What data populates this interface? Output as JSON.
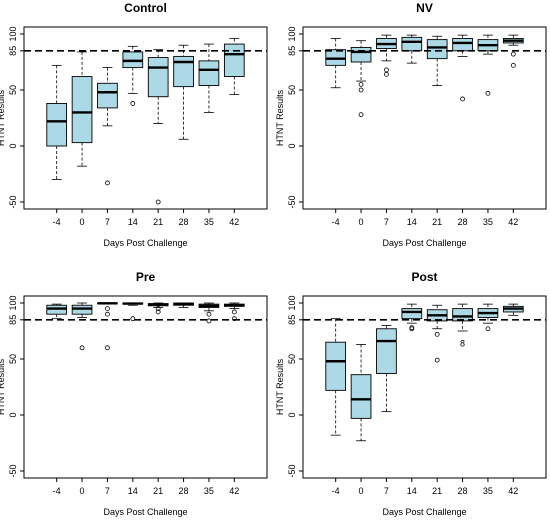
{
  "colors": {
    "box_fill": "#add8e6",
    "stroke": "#000000",
    "background": "#ffffff"
  },
  "chart_data": [
    {
      "type": "box",
      "title": "Control",
      "xlabel": "Days Post Challenge",
      "ylabel": "HTNT Results",
      "ylim": [
        -50,
        100
      ],
      "yticks": [
        "-50",
        "0",
        "50",
        "85",
        "100"
      ],
      "reference_line": {
        "value": 85,
        "style": "dashed"
      },
      "categories": [
        "-4",
        "0",
        "7",
        "14",
        "21",
        "28",
        "35",
        "42"
      ],
      "boxes": [
        {
          "whisker_low": -30,
          "q1": 0,
          "median": 22,
          "q3": 38,
          "whisker_high": 72,
          "outliers": []
        },
        {
          "whisker_low": -18,
          "q1": 3,
          "median": 30,
          "q3": 62,
          "whisker_high": 84,
          "outliers": []
        },
        {
          "whisker_low": 18,
          "q1": 34,
          "median": 48,
          "q3": 56,
          "whisker_high": 70,
          "outliers": [
            -33
          ]
        },
        {
          "whisker_low": 47,
          "q1": 70,
          "median": 76,
          "q3": 84,
          "whisker_high": 89,
          "outliers": [
            38
          ]
        },
        {
          "whisker_low": 20,
          "q1": 44,
          "median": 70,
          "q3": 79,
          "whisker_high": 86,
          "outliers": [
            -50
          ]
        },
        {
          "whisker_low": 6,
          "q1": 53,
          "median": 75,
          "q3": 80,
          "whisker_high": 90,
          "outliers": []
        },
        {
          "whisker_low": 30,
          "q1": 54,
          "median": 68,
          "q3": 76,
          "whisker_high": 91,
          "outliers": []
        },
        {
          "whisker_low": 46,
          "q1": 62,
          "median": 82,
          "q3": 91,
          "whisker_high": 96,
          "outliers": []
        }
      ]
    },
    {
      "type": "box",
      "title": "NV",
      "xlabel": "Days Post Challenge",
      "ylabel": "HTNT Results",
      "ylim": [
        -50,
        100
      ],
      "yticks": [
        "-50",
        "0",
        "50",
        "85",
        "100"
      ],
      "reference_line": {
        "value": 85,
        "style": "dashed"
      },
      "categories": [
        "-4",
        "0",
        "7",
        "14",
        "21",
        "28",
        "35",
        "42"
      ],
      "boxes": [
        {
          "whisker_low": 52,
          "q1": 72,
          "median": 78,
          "q3": 86,
          "whisker_high": 96,
          "outliers": []
        },
        {
          "whisker_low": 58,
          "q1": 75,
          "median": 84,
          "q3": 88,
          "whisker_high": 94,
          "outliers": [
            28,
            50,
            55
          ]
        },
        {
          "whisker_low": 76,
          "q1": 87,
          "median": 91,
          "q3": 96,
          "whisker_high": 99,
          "outliers": [
            64,
            68
          ]
        },
        {
          "whisker_low": 74,
          "q1": 85,
          "median": 93,
          "q3": 97,
          "whisker_high": 99,
          "outliers": []
        },
        {
          "whisker_low": 54,
          "q1": 78,
          "median": 88,
          "q3": 95,
          "whisker_high": 98,
          "outliers": []
        },
        {
          "whisker_low": 80,
          "q1": 85,
          "median": 92,
          "q3": 96,
          "whisker_high": 99,
          "outliers": [
            42
          ]
        },
        {
          "whisker_low": 82,
          "q1": 85,
          "median": 90,
          "q3": 95,
          "whisker_high": 99,
          "outliers": [
            47
          ]
        },
        {
          "whisker_low": 90,
          "q1": 92,
          "median": 94,
          "q3": 96,
          "whisker_high": 99,
          "outliers": [
            72,
            82
          ]
        }
      ]
    },
    {
      "type": "box",
      "title": "Pre",
      "xlabel": "Days Post Challenge",
      "ylabel": "HTNT Results",
      "ylim": [
        -50,
        100
      ],
      "yticks": [
        "-50",
        "0",
        "50",
        "85",
        "100"
      ],
      "reference_line": {
        "value": 85,
        "style": "dashed"
      },
      "categories": [
        "-4",
        "0",
        "7",
        "14",
        "21",
        "28",
        "35",
        "42"
      ],
      "boxes": [
        {
          "whisker_low": 86,
          "q1": 90,
          "median": 95,
          "q3": 98,
          "whisker_high": 99,
          "outliers": []
        },
        {
          "whisker_low": 87,
          "q1": 90,
          "median": 95,
          "q3": 98,
          "whisker_high": 100,
          "outliers": [
            60
          ]
        },
        {
          "whisker_low": 99,
          "q1": 99.3,
          "median": 99.7,
          "q3": 100,
          "whisker_high": 100,
          "outliers": [
            60,
            90,
            95
          ]
        },
        {
          "whisker_low": 98,
          "q1": 99,
          "median": 99.5,
          "q3": 100,
          "whisker_high": 100,
          "outliers": [
            86
          ]
        },
        {
          "whisker_low": 96,
          "q1": 97.5,
          "median": 98.5,
          "q3": 99.5,
          "whisker_high": 100,
          "outliers": [
            92,
            95
          ]
        },
        {
          "whisker_low": 96,
          "q1": 98,
          "median": 99,
          "q3": 100,
          "whisker_high": 100,
          "outliers": []
        },
        {
          "whisker_low": 93,
          "q1": 96,
          "median": 97.5,
          "q3": 99,
          "whisker_high": 100,
          "outliers": [
            84,
            90
          ]
        },
        {
          "whisker_low": 95,
          "q1": 97,
          "median": 98,
          "q3": 99,
          "whisker_high": 100,
          "outliers": [
            86,
            92
          ]
        }
      ]
    },
    {
      "type": "box",
      "title": "Post",
      "xlabel": "Days Post Challenge",
      "ylabel": "HTNT Results",
      "ylim": [
        -50,
        100
      ],
      "yticks": [
        "-50",
        "0",
        "50",
        "85",
        "100"
      ],
      "reference_line": {
        "value": 85,
        "style": "dashed"
      },
      "categories": [
        "-4",
        "0",
        "7",
        "14",
        "21",
        "28",
        "35",
        "42"
      ],
      "boxes": [
        {
          "whisker_low": -18,
          "q1": 22,
          "median": 48,
          "q3": 65,
          "whisker_high": 86,
          "outliers": []
        },
        {
          "whisker_low": -23,
          "q1": -3,
          "median": 14,
          "q3": 36,
          "whisker_high": 63,
          "outliers": []
        },
        {
          "whisker_low": 3,
          "q1": 37,
          "median": 66,
          "q3": 77,
          "whisker_high": 80,
          "outliers": []
        },
        {
          "whisker_low": 82,
          "q1": 86,
          "median": 92,
          "q3": 95,
          "whisker_high": 99,
          "outliers": [
            77,
            78
          ]
        },
        {
          "whisker_low": 77,
          "q1": 84,
          "median": 89,
          "q3": 94,
          "whisker_high": 98,
          "outliers": [
            49,
            72
          ]
        },
        {
          "whisker_low": 75,
          "q1": 84,
          "median": 88,
          "q3": 95,
          "whisker_high": 99,
          "outliers": []
        },
        {
          "whisker_low": 82,
          "q1": 87,
          "median": 91,
          "q3": 95,
          "whisker_high": 99,
          "outliers": [
            77
          ]
        },
        {
          "whisker_low": 89,
          "q1": 92,
          "median": 95,
          "q3": 97,
          "whisker_high": 99,
          "outliers": []
        }
      ],
      "annotation": "8"
    }
  ]
}
